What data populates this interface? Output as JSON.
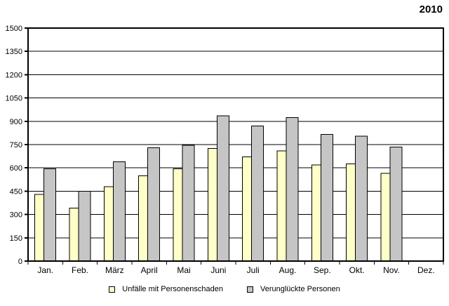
{
  "title": "2010",
  "chart_data": {
    "type": "bar",
    "title": "2010",
    "categories": [
      "Jan.",
      "Feb.",
      "März",
      "April",
      "Mai",
      "Juni",
      "Juli",
      "Aug.",
      "Sep.",
      "Okt.",
      "Nov.",
      "Dez."
    ],
    "series": [
      {
        "name": "Unfälle mit Personenschaden",
        "color": "#FFFFC8",
        "values": [
          430,
          340,
          480,
          550,
          595,
          725,
          670,
          710,
          620,
          625,
          565,
          null
        ]
      },
      {
        "name": "Verunglückte Personen",
        "color": "#C5C5C5",
        "values": [
          595,
          450,
          640,
          730,
          745,
          935,
          870,
          925,
          815,
          805,
          735,
          null
        ]
      }
    ],
    "xlabel": "",
    "ylabel": "",
    "ylim": [
      0,
      1500
    ],
    "ytick_step": 150,
    "grid": true,
    "legend_position": "bottom",
    "bar_border_color": "#000000",
    "frame_color": "#000000"
  }
}
